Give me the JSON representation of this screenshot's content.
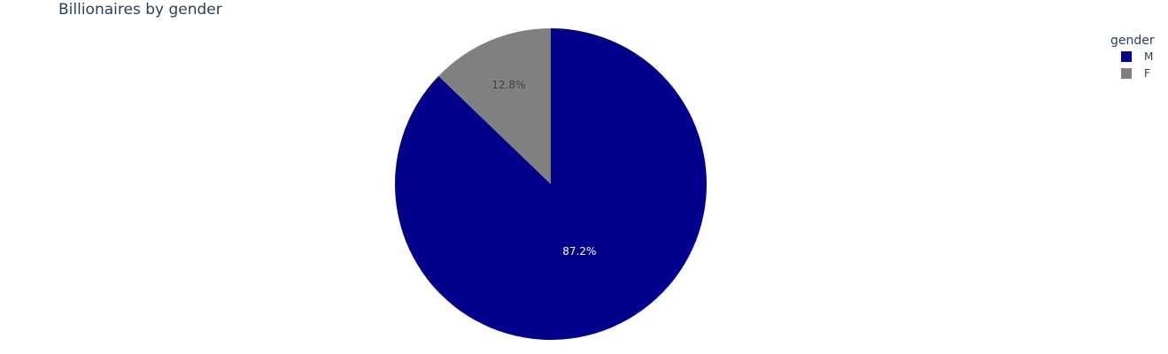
{
  "chart_data": {
    "type": "pie",
    "title": "Billionaires by gender",
    "legend_title": "gender",
    "legend_position": "top-right",
    "labels": [
      "M",
      "F"
    ],
    "values": [
      87.2,
      12.8
    ],
    "value_labels": [
      "87.2%",
      "12.8%"
    ],
    "colors": [
      "#00008b",
      "#808080"
    ],
    "label_colors": [
      "#ffffff",
      "#444444"
    ],
    "rotation_direction": "clockwise",
    "start_angle_deg": 0
  }
}
